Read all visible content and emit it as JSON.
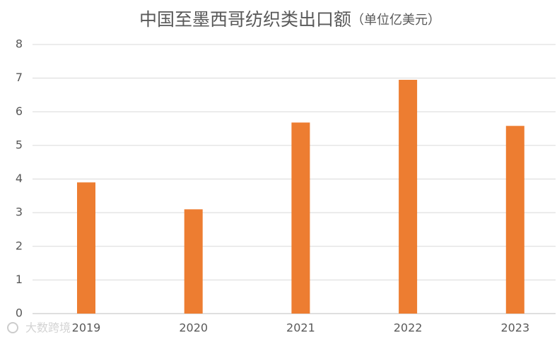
{
  "chart_data": {
    "type": "bar",
    "title": "中国至墨西哥纺织类出口额",
    "unit": "（单位亿美元）",
    "categories": [
      "2019",
      "2020",
      "2021",
      "2022",
      "2023"
    ],
    "values": [
      3.9,
      3.1,
      5.68,
      6.95,
      5.58
    ],
    "color": "#ed7d31",
    "ylim": [
      0,
      8
    ],
    "yticks": [
      0,
      1,
      2,
      3,
      4,
      5,
      6,
      7,
      8
    ],
    "grid": true,
    "watermark": "大数跨境"
  }
}
